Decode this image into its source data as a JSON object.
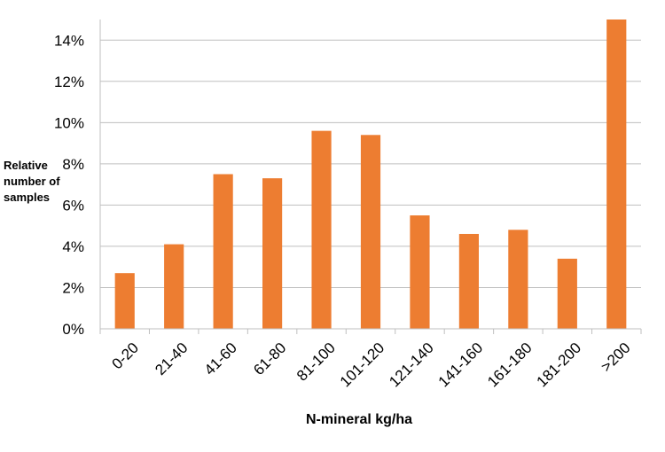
{
  "chart_data": {
    "type": "bar",
    "title": "",
    "xlabel": "N-mineral kg/ha",
    "ylabel_lines": [
      "Relative",
      "number of",
      "samples"
    ],
    "categories": [
      "0-20",
      "21-40",
      "41-60",
      "61-80",
      "81-100",
      "101-120",
      "121-140",
      "141-160",
      "161-180",
      "181-200",
      ">200"
    ],
    "values": [
      2.7,
      4.1,
      7.5,
      7.3,
      9.6,
      9.4,
      5.5,
      4.6,
      4.8,
      3.4,
      15.0
    ],
    "ylim": [
      0,
      15
    ],
    "yticks": [
      0,
      2,
      4,
      6,
      8,
      10,
      12,
      14
    ],
    "ytick_labels": [
      "0%",
      "2%",
      "4%",
      "6%",
      "8%",
      "10%",
      "12%",
      "14%"
    ],
    "grid": true,
    "legend": "none",
    "bar_color": "#ED7D31",
    "grid_color": "#BFBFBF"
  }
}
